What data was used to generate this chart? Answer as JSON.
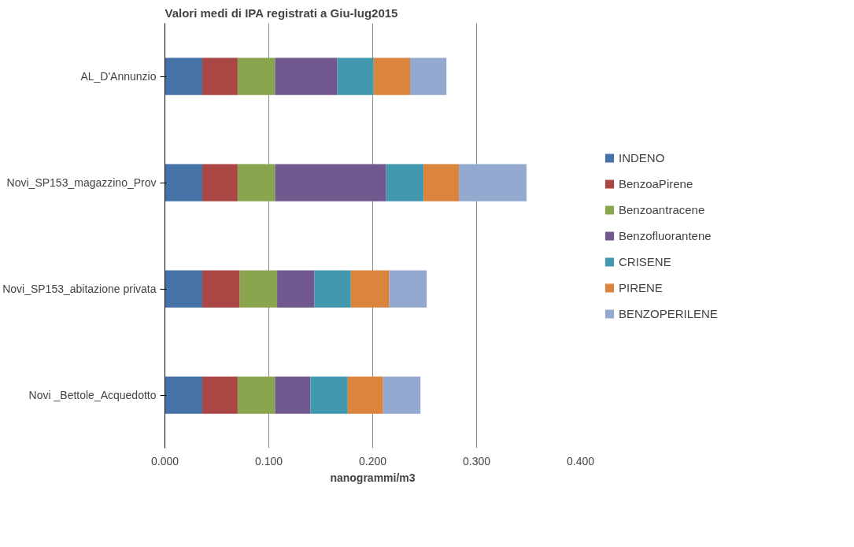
{
  "chart_data": {
    "type": "bar",
    "orientation": "horizontal",
    "stacked": true,
    "title": "Valori medi di IPA registrati a Giu-lug2015",
    "xlabel": "nanogrammi/m3",
    "categories": [
      "AL_D'Annunzio",
      "Novi_SP153_magazzino_Prov",
      "Novi_SP153_abitazione privata",
      "Novi _Bettole_Acquedotto"
    ],
    "series": [
      {
        "name": "INDENO",
        "color": "#4572a7",
        "values": [
          0.036,
          0.036,
          0.036,
          0.036
        ]
      },
      {
        "name": "BenzoaPirene",
        "color": "#aa4643",
        "values": [
          0.034,
          0.034,
          0.036,
          0.034
        ]
      },
      {
        "name": "Benzoantracene",
        "color": "#89a54e",
        "values": [
          0.036,
          0.036,
          0.036,
          0.036
        ]
      },
      {
        "name": "Benzofluorantene",
        "color": "#71588f",
        "values": [
          0.06,
          0.107,
          0.036,
          0.034
        ]
      },
      {
        "name": "CRISENE",
        "color": "#4198af",
        "values": [
          0.035,
          0.036,
          0.035,
          0.036
        ]
      },
      {
        "name": "PIRENE",
        "color": "#db843d",
        "values": [
          0.035,
          0.034,
          0.037,
          0.034
        ]
      },
      {
        "name": "BENZOPERILENE",
        "color": "#93a9cf",
        "values": [
          0.035,
          0.065,
          0.036,
          0.036
        ]
      }
    ],
    "xlim": [
      0,
      0.4
    ],
    "xticks": [
      {
        "value": 0,
        "label": "0.000"
      },
      {
        "value": 0.1,
        "label": "0.100"
      },
      {
        "value": 0.2,
        "label": "0.200"
      },
      {
        "value": 0.3,
        "label": "0.300"
      },
      {
        "value": 0.4,
        "label": "0.400"
      }
    ],
    "grid": "x",
    "legend": "right"
  }
}
